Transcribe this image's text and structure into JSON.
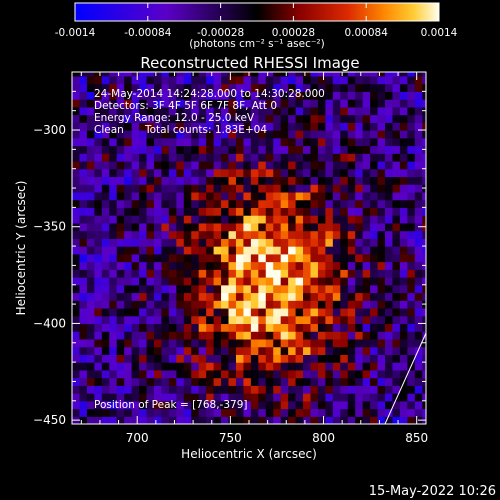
{
  "chart_data": {
    "type": "heatmap",
    "title": "Reconstructed RHESSI Image",
    "xlabel": "Heliocentric X (arcsec)",
    "ylabel": "Heliocentric Y (arcsec)",
    "xlim": [
      665,
      855
    ],
    "ylim": [
      -452,
      -270
    ],
    "xticks": [
      700,
      750,
      800,
      850
    ],
    "yticks": [
      -300,
      -350,
      -400,
      -450
    ],
    "colorbar": {
      "ticks": [
        -0.0014,
        -0.00084,
        -0.00028,
        0.00028,
        0.00084,
        0.0014
      ],
      "tick_labels": [
        "-0.0014",
        "-0.00084",
        "-0.00028",
        "0.00028",
        "0.00084",
        "0.0014"
      ],
      "unit_label": "(photons cm⁻² s⁻¹ asec⁻²)",
      "range": [
        -0.0014,
        0.0014
      ],
      "colors": [
        "#0000ff",
        "#5a00c8",
        "#000000",
        "#8c0000",
        "#dc2a00",
        "#ff8800",
        "#ffcc33",
        "#ffffee"
      ]
    },
    "annotations": {
      "time_range": "24-May-2014 14:24:28.000 to 14:30:28.000",
      "detectors": "Detectors: 3F 4F 5F 6F 7F 8F, Att 0",
      "energy_range": "Energy Range: 12.0 - 25.0 keV",
      "method": "Clean",
      "total_counts": "Total counts: 1.83E+04",
      "peak_position": "Position of Peak = [768,-379]"
    },
    "peak": {
      "x": 768,
      "y": -379
    },
    "limb_line": {
      "from": [
        833,
        -452
      ],
      "to": [
        855,
        -405
      ]
    }
  },
  "footer": {
    "date_stamp": "15-May-2022 10:26"
  }
}
